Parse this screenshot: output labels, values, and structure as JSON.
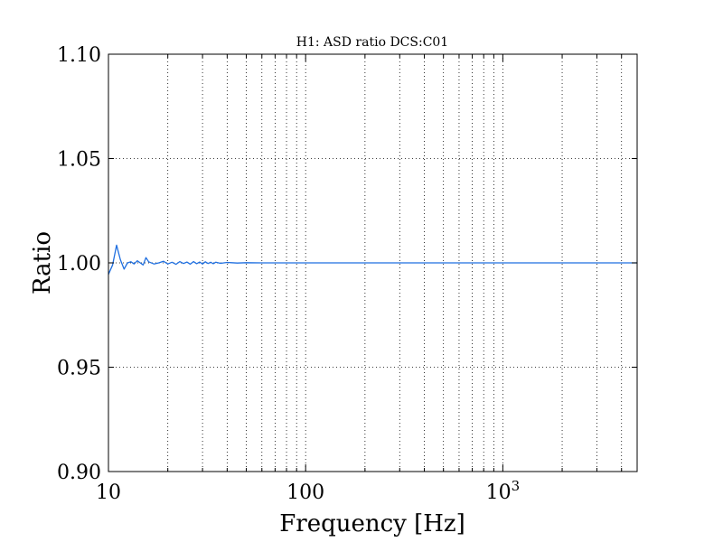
{
  "chart_data": {
    "type": "line",
    "title": "H1: ASD ratio DCS:C01",
    "xlabel": "Frequency [Hz]",
    "ylabel": "Ratio",
    "xscale": "log",
    "xlim": [
      10,
      4800
    ],
    "ylim": [
      0.9,
      1.1
    ],
    "grid": true,
    "grid_style": "dotted",
    "line_color": "#1f6fe0",
    "yticks": [
      {
        "value": 0.9,
        "label": "0.90"
      },
      {
        "value": 0.95,
        "label": "0.95"
      },
      {
        "value": 1.0,
        "label": "1.00"
      },
      {
        "value": 1.05,
        "label": "1.05"
      },
      {
        "value": 1.1,
        "label": "1.10"
      }
    ],
    "xticks_major": [
      {
        "value": 10,
        "label": "10"
      },
      {
        "value": 100,
        "label": "100"
      },
      {
        "value": 1000,
        "label": "10^3"
      }
    ],
    "series": [
      {
        "x": [
          10,
          10.5,
          11,
          11.5,
          12,
          12.5,
          13,
          13.5,
          14,
          14.5,
          15,
          15.5,
          16,
          17,
          18,
          19,
          20,
          21,
          22,
          23,
          24,
          25,
          26,
          27,
          28,
          29,
          30,
          31,
          32,
          33,
          34,
          35,
          37,
          40,
          45,
          50,
          60,
          80,
          100,
          200,
          500,
          1000,
          2000,
          4800
        ],
        "y": [
          0.9945,
          0.999,
          1.0085,
          1.0015,
          0.997,
          1.0,
          1.0005,
          0.9995,
          1.001,
          1.0,
          0.999,
          1.0025,
          1.0005,
          0.9995,
          1.0,
          1.0008,
          0.9995,
          1.0003,
          0.9993,
          1.0006,
          0.9997,
          1.0004,
          0.9994,
          1.0006,
          0.9996,
          1.0004,
          0.9995,
          1.0005,
          0.9997,
          1.0003,
          0.9996,
          1.0003,
          0.9998,
          1.0002,
          0.9999,
          1.0001,
          1.0,
          1.0,
          1.0,
          1.0,
          1.0,
          1.0,
          1.0,
          1.0
        ]
      }
    ]
  }
}
